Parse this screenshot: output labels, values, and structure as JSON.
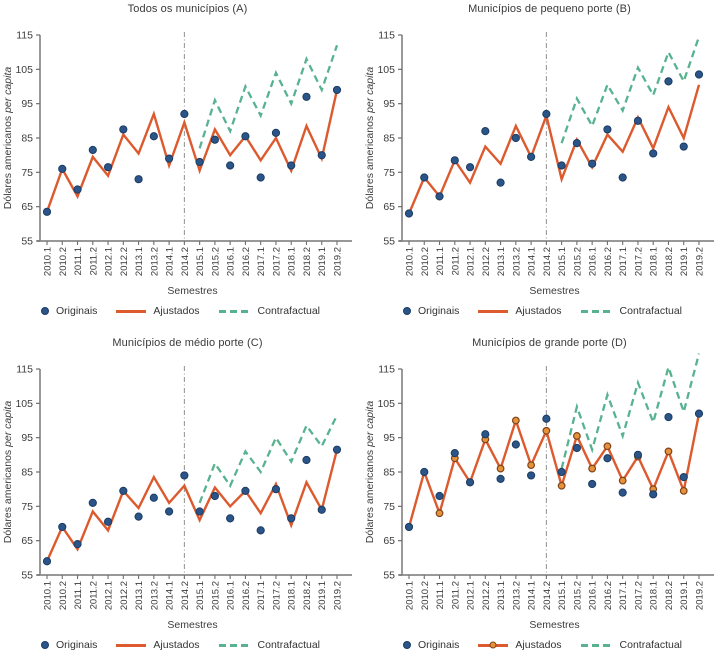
{
  "figure": {
    "background": "#ffffff"
  },
  "legend": {
    "originais": "Originais",
    "ajustados": "Ajustados",
    "contrafactual": "Contrafactual"
  },
  "colors": {
    "originais_fill": "#2b5588",
    "originais_border": "#1c3c63",
    "ajustados_line": "#dc5a2d",
    "ajustados_marker_fill": "#e5923b",
    "ajustados_marker_border": "#80431a",
    "contrafactual_line": "#57b290",
    "axis_line": "#6e6e6e",
    "bottom_axis_line": "#8a8a8a",
    "tick_text": "#3c3c3c",
    "title_text": "#3a3a3a",
    "intervention_line": "#909090"
  },
  "chart_data": {
    "type": "line",
    "xlabel": "Semestres",
    "ylabel_normal": "Dólares americanos ",
    "ylabel_italic": "per capita",
    "ylim": [
      55,
      115
    ],
    "yticks": [
      115,
      105,
      95,
      85,
      75,
      65,
      55
    ],
    "grid": false,
    "legend_position": "bottom",
    "categories": [
      "2010.1",
      "2010.2",
      "2011.1",
      "2011.2",
      "2012.1",
      "2012.2",
      "2013.1",
      "2013.2",
      "2014.1",
      "2014.2",
      "2015.1",
      "2015.2",
      "2016.1",
      "2016.2",
      "2017.1",
      "2017.2",
      "2018.1",
      "2018.2",
      "2019.1",
      "2019.2"
    ],
    "intervention_at": "2014.2",
    "contrafactual_starts_at": "2015.1",
    "panels": [
      {
        "id": "A",
        "title": "Todos os municípios (A)",
        "ajustados_has_markers": false,
        "series": [
          {
            "name": "Originais",
            "style": "scatter",
            "values": [
              63.5,
              76,
              70,
              81.5,
              76.5,
              87.5,
              73,
              85.5,
              79,
              92,
              78,
              84.5,
              77,
              85.5,
              73.5,
              86.5,
              77,
              97,
              80,
              99
            ]
          },
          {
            "name": "Ajustados",
            "style": "solid-line",
            "values": [
              63.5,
              76,
              68,
              79.5,
              74,
              86,
              80.5,
              92,
              77,
              89.5,
              75.5,
              87.5,
              80,
              85.5,
              78.5,
              85,
              75.5,
              88.5,
              79,
              99
            ]
          },
          {
            "name": "Contrafactual",
            "style": "dashed-line",
            "x_start_index": 10,
            "values": [
              82,
              96,
              87,
              100,
              91.5,
              104,
              95,
              108,
              99,
              112
            ]
          }
        ]
      },
      {
        "id": "B",
        "title": "Municípios de pequeno porte (B)",
        "ajustados_has_markers": false,
        "series": [
          {
            "name": "Originais",
            "style": "scatter",
            "values": [
              63,
              73.5,
              68,
              78.5,
              76.5,
              87,
              72,
              85,
              79.5,
              92,
              77,
              83.5,
              77.5,
              87.5,
              73.5,
              90,
              80.5,
              101.5,
              82.5,
              103.5
            ]
          },
          {
            "name": "Ajustados",
            "style": "solid-line",
            "values": [
              63,
              73.5,
              68,
              78.5,
              72,
              82.5,
              77.5,
              88.5,
              79.5,
              91.5,
              73,
              84.5,
              76.5,
              86,
              81,
              91,
              82,
              94,
              85,
              100.5
            ]
          },
          {
            "name": "Contrafactual",
            "style": "dashed-line",
            "x_start_index": 10,
            "values": [
              83.5,
              96.5,
              88.5,
              100.5,
              93,
              105.5,
              97.5,
              110,
              101.5,
              114.5
            ]
          }
        ]
      },
      {
        "id": "C",
        "title": "Municípios de médio porte (C)",
        "ajustados_has_markers": false,
        "series": [
          {
            "name": "Originais",
            "style": "scatter",
            "values": [
              59,
              69,
              64,
              76,
              70.5,
              79.5,
              72,
              77.5,
              73.5,
              84,
              73.5,
              78,
              71.5,
              79.5,
              68,
              80,
              71.5,
              88.5,
              74,
              91.5
            ]
          },
          {
            "name": "Ajustados",
            "style": "solid-line",
            "values": [
              59,
              69,
              62.5,
              73.5,
              68,
              79.5,
              74.5,
              83.5,
              76,
              81,
              71,
              80.5,
              75,
              79.5,
              73,
              81.5,
              69.5,
              82,
              74,
              91.5
            ]
          },
          {
            "name": "Contrafactual",
            "style": "dashed-line",
            "x_start_index": 10,
            "values": [
              76,
              87.5,
              81,
              91,
              85,
              95,
              88,
              98.5,
              92.5,
              101.5
            ]
          }
        ]
      },
      {
        "id": "D",
        "title": "Municípios de grande porte (D)",
        "ajustados_has_markers": true,
        "series": [
          {
            "name": "Originais",
            "style": "scatter",
            "values": [
              69,
              85,
              78,
              90.5,
              82,
              96,
              83,
              93,
              84,
              100.5,
              85,
              92,
              81.5,
              89,
              79,
              90,
              78.5,
              101,
              83.5,
              102
            ]
          },
          {
            "name": "Ajustados",
            "style": "solid-line-markers",
            "values": [
              69,
              85,
              73,
              89,
              82,
              94.5,
              86,
              100,
              87,
              97,
              81,
              95.5,
              86,
              92.5,
              82.5,
              89.5,
              80,
              91,
              79.5,
              102
            ]
          },
          {
            "name": "Contrafactual",
            "style": "dashed-line",
            "x_start_index": 10,
            "values": [
              86,
              104,
              91.5,
              107.5,
              95.5,
              111,
              99.5,
              115.5,
              102.5,
              119.5
            ]
          }
        ]
      }
    ]
  }
}
